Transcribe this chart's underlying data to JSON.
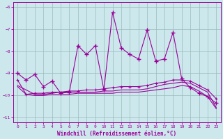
{
  "xlabel": "Windchill (Refroidissement éolien,°C)",
  "bg_color": "#cce8ec",
  "line_color": "#990099",
  "grid_color": "#99bbbb",
  "xlim": [
    -0.5,
    23.5
  ],
  "ylim": [
    -11.2,
    -5.8
  ],
  "xticks": [
    0,
    1,
    2,
    3,
    4,
    5,
    6,
    7,
    8,
    9,
    10,
    11,
    12,
    13,
    14,
    15,
    16,
    17,
    18,
    19,
    20,
    21,
    22,
    23
  ],
  "yticks": [
    -11,
    -10,
    -9,
    -8,
    -7,
    -6
  ],
  "line1_x": [
    0,
    1,
    2,
    3,
    4,
    5,
    6,
    7,
    8,
    9,
    10,
    11,
    12,
    13,
    14,
    15,
    16,
    17,
    18,
    19,
    20,
    21,
    22,
    23
  ],
  "line1_y": [
    -9.0,
    -9.3,
    -9.05,
    -9.6,
    -9.35,
    -9.9,
    -9.85,
    -7.75,
    -8.15,
    -7.75,
    -9.75,
    -6.25,
    -7.85,
    -8.15,
    -8.35,
    -7.05,
    -8.45,
    -8.35,
    -7.15,
    -9.25,
    -9.65,
    -9.9,
    -10.05,
    -10.35
  ],
  "line2_x": [
    0,
    1,
    2,
    3,
    4,
    5,
    6,
    7,
    8,
    9,
    10,
    11,
    12,
    13,
    14,
    15,
    16,
    17,
    18,
    19,
    20,
    21,
    22,
    23
  ],
  "line2_y": [
    -9.3,
    -9.95,
    -9.9,
    -9.9,
    -9.85,
    -9.85,
    -9.8,
    -9.8,
    -9.75,
    -9.75,
    -9.7,
    -9.65,
    -9.6,
    -9.6,
    -9.6,
    -9.55,
    -9.45,
    -9.4,
    -9.3,
    -9.3,
    -9.35,
    -9.55,
    -9.75,
    -10.15
  ],
  "line3_x": [
    0,
    2,
    3,
    4,
    5,
    6,
    7,
    8,
    9,
    10,
    11,
    12,
    13,
    14,
    15,
    16,
    17,
    18,
    19,
    20,
    21,
    22,
    23
  ],
  "line3_y": [
    -9.55,
    -9.95,
    -9.95,
    -9.9,
    -9.85,
    -9.85,
    -9.85,
    -9.85,
    -9.85,
    -9.8,
    -9.8,
    -9.75,
    -9.75,
    -9.75,
    -9.7,
    -9.6,
    -9.5,
    -9.45,
    -9.4,
    -9.45,
    -9.65,
    -9.85,
    -10.55
  ],
  "line4_x": [
    0,
    1,
    2,
    3,
    4,
    5,
    6,
    7,
    8,
    9,
    10,
    11,
    12,
    13,
    14,
    15,
    16,
    17,
    18,
    19,
    20,
    21,
    22,
    23
  ],
  "line4_y": [
    -9.6,
    -9.95,
    -10.0,
    -10.0,
    -9.95,
    -9.95,
    -9.95,
    -9.9,
    -9.9,
    -9.9,
    -9.9,
    -9.9,
    -9.85,
    -9.85,
    -9.85,
    -9.8,
    -9.75,
    -9.7,
    -9.65,
    -9.55,
    -9.6,
    -9.8,
    -10.05,
    -10.6
  ]
}
